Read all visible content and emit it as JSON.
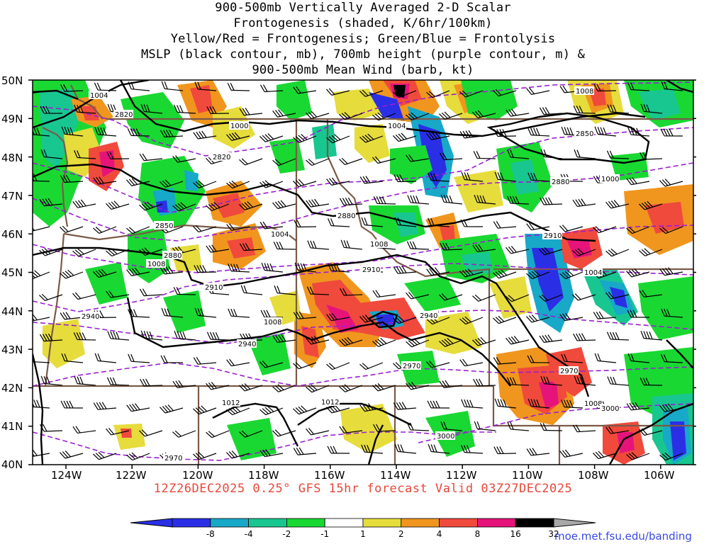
{
  "title": {
    "line1": "900-500mb Vertically Averaged 2-D Scalar",
    "line2": "Frontogenesis (shaded, K/6hr/100km)",
    "line3": "Yellow/Red = Frontogenesis;  Green/Blue = Frontolysis",
    "line4": "MSLP (black contour, mb), 700mb height (purple contour, m) &",
    "line5": "900-500mb Mean Wind (barb, kt)"
  },
  "axes": {
    "lat_labels": [
      "50N",
      "49N",
      "48N",
      "47N",
      "46N",
      "45N",
      "44N",
      "43N",
      "42N",
      "41N",
      "40N"
    ],
    "lon_labels": [
      "124W",
      "122W",
      "120W",
      "118W",
      "116W",
      "114W",
      "112W",
      "110W",
      "108W",
      "106W"
    ]
  },
  "mslp_labels": [
    "1004",
    "1000",
    "1004",
    "1008",
    "1000",
    "1004",
    "1008",
    "1008",
    "1012",
    "1012",
    "1004",
    "1008"
  ],
  "height_labels": [
    "2820",
    "2820",
    "2850",
    "2880",
    "2910",
    "2940",
    "2940",
    "2880",
    "2910",
    "2940",
    "2970",
    "2970",
    "2880",
    "2910",
    "2850",
    "3000",
    "3000",
    "2970"
  ],
  "valid_line": "12Z26DEC2025 0.25° GFS 15hr forecast Valid 03Z27DEC2025",
  "colorbar": {
    "labels": [
      "-8",
      "-4",
      "-2",
      "-1",
      "1",
      "2",
      "4",
      "8",
      "16",
      "32"
    ],
    "colors": [
      "#2a2fe6",
      "#18a8c8",
      "#18c690",
      "#1ad832",
      "#ffffff",
      "#e6dc3c",
      "#f0961e",
      "#f04a3c",
      "#e6147a",
      "#000000"
    ],
    "arrow_low_color": "#2a2fe6",
    "arrow_high_color": "#a8a8a8"
  },
  "credit": "moe.met.fsu.edu/banding"
}
